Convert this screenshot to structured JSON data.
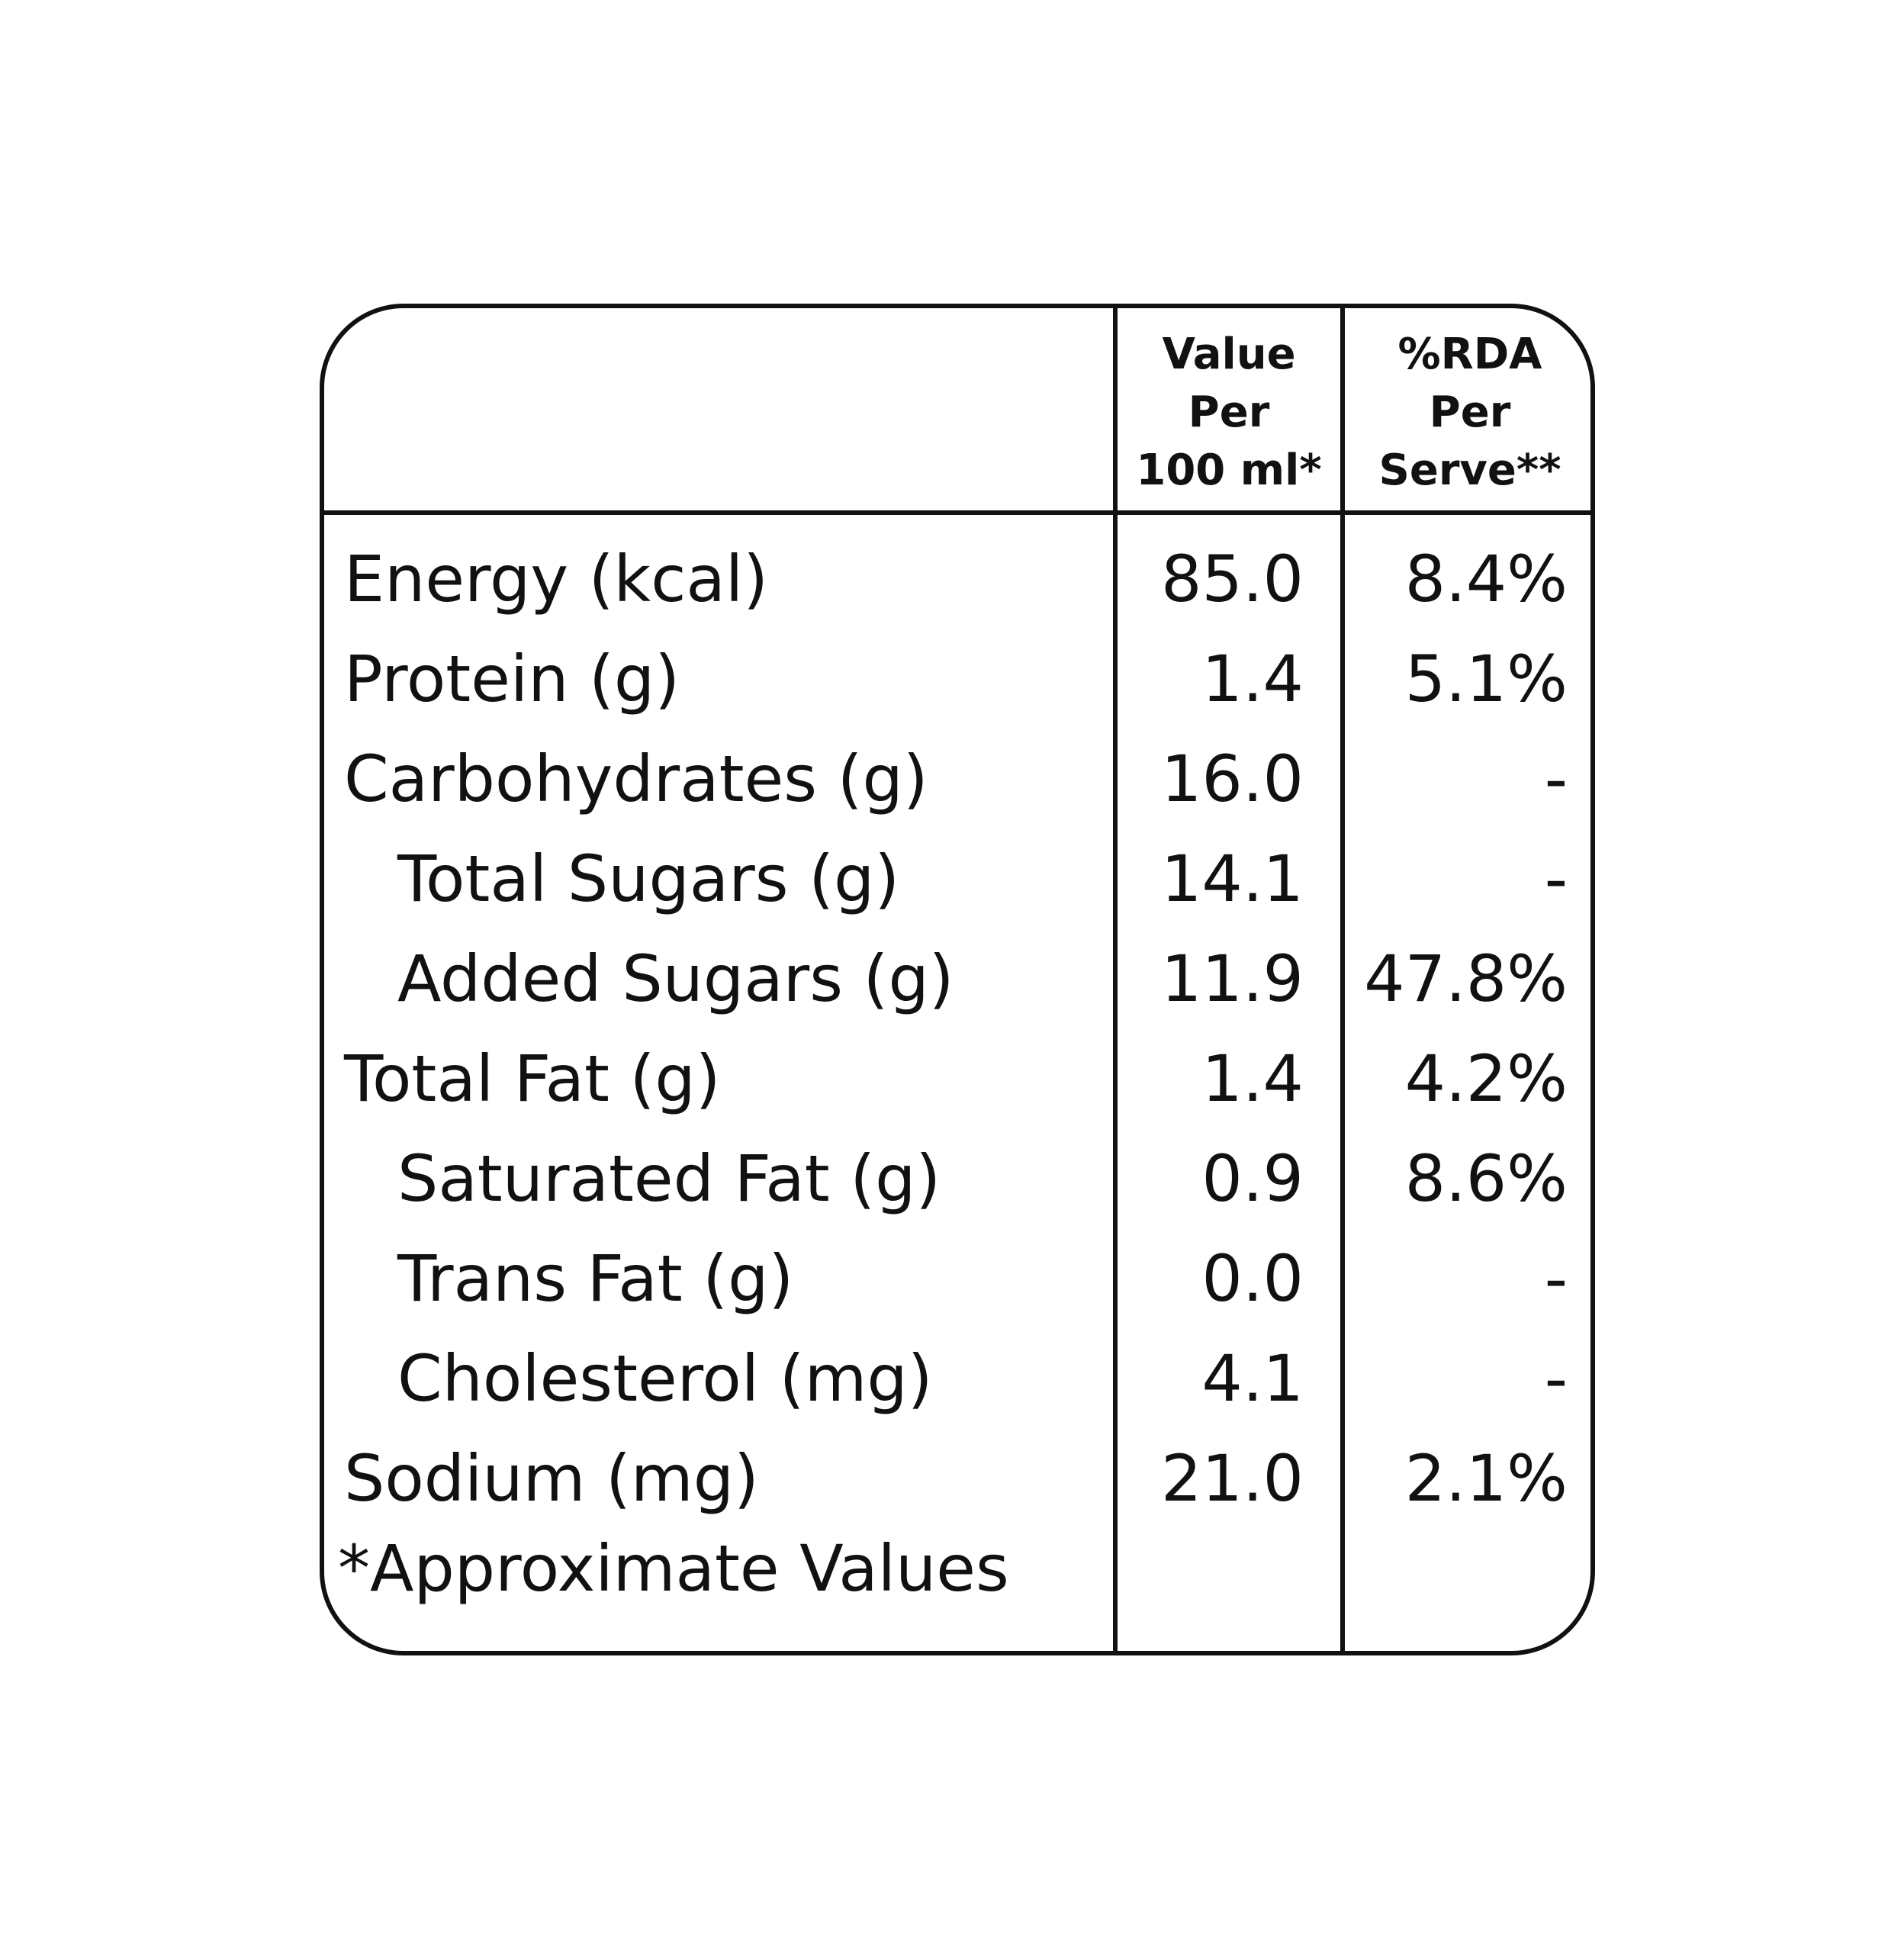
{
  "table": {
    "header": {
      "value_col": [
        "Value",
        "Per",
        "100 ml*"
      ],
      "rda_col": [
        "%RDA",
        "Per",
        "Serve**"
      ]
    },
    "rows": [
      {
        "label": "Energy (kcal)",
        "value": "85.0",
        "rda": "8.4%",
        "indent": false
      },
      {
        "label": "Protein (g)",
        "value": "1.4",
        "rda": "5.1%",
        "indent": false
      },
      {
        "label": "Carbohydrates (g)",
        "value": "16.0",
        "rda": "-",
        "indent": false
      },
      {
        "label": "Total Sugars (g)",
        "value": "14.1",
        "rda": "-",
        "indent": true
      },
      {
        "label": "Added Sugars (g)",
        "value": "11.9",
        "rda": "47.8%",
        "indent": true
      },
      {
        "label": "Total Fat (g)",
        "value": "1.4",
        "rda": "4.2%",
        "indent": false
      },
      {
        "label": "Saturated Fat (g)",
        "value": "0.9",
        "rda": "8.6%",
        "indent": true
      },
      {
        "label": "Trans Fat (g)",
        "value": "0.0",
        "rda": "-",
        "indent": true
      },
      {
        "label": "Cholesterol (mg)",
        "value": "4.1",
        "rda": "-",
        "indent": true
      },
      {
        "label": "Sodium (mg)",
        "value": "21.0",
        "rda": "2.1%",
        "indent": false
      }
    ],
    "footnote": "*Approximate Values"
  },
  "colors": {
    "line": "#111111",
    "text": "#111111",
    "background": "#ffffff"
  }
}
